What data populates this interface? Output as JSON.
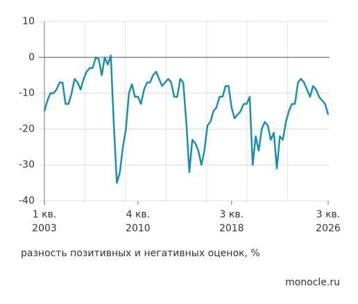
{
  "chart_data": {
    "type": "line",
    "categories": [
      "1 кв.\n2003",
      null,
      null,
      null,
      null,
      null,
      null,
      null,
      null,
      null,
      null,
      null,
      null,
      null,
      null,
      null,
      null,
      null,
      null,
      null,
      null,
      null,
      null,
      null,
      null,
      null,
      null,
      null,
      null,
      null,
      null,
      "4 кв.\n2010",
      null,
      null,
      null,
      null,
      null,
      null,
      null,
      null,
      null,
      null,
      null,
      null,
      null,
      null,
      null,
      null,
      null,
      null,
      null,
      null,
      null,
      null,
      null,
      null,
      null,
      null,
      null,
      null,
      null,
      null,
      "3 кв.\n2018",
      null,
      null,
      null,
      null,
      null,
      null,
      null,
      null,
      null,
      null,
      null,
      null,
      null,
      null,
      null,
      null,
      null,
      null,
      null,
      null,
      null,
      null,
      null,
      null,
      null,
      null,
      null,
      null,
      null,
      null,
      null,
      "3 кв.\n2026"
    ],
    "values": [
      -15,
      -12,
      -10,
      -10,
      -9,
      -7,
      -7,
      -13,
      -13,
      -10,
      -6,
      -7,
      -9,
      -6,
      -4,
      -3,
      -3,
      0,
      -0.5,
      -5,
      0,
      -2,
      0.5,
      -19,
      -35,
      -32,
      -25,
      -20,
      -10,
      -7.5,
      -11,
      -11,
      -13,
      -9,
      -7,
      -7,
      -5,
      -4,
      -6,
      -8,
      -7,
      -6,
      -7,
      -11,
      -11,
      -6,
      -7,
      -18,
      -32,
      -23,
      -24,
      -26,
      -30,
      -26,
      -19,
      -18,
      -15,
      -14,
      -11,
      -11,
      -8,
      -8,
      -14,
      -17,
      -16,
      -15,
      -13,
      -13,
      -11,
      -30,
      -22,
      -26,
      -20,
      -18,
      -19,
      -23,
      -21,
      -31,
      -22,
      -23,
      -18,
      -15,
      -13,
      -13,
      -7,
      -6,
      -7,
      -9,
      -11,
      -8,
      -9,
      -11,
      -12,
      -13,
      -16
    ],
    "color": "#1a8db3",
    "ylim": [
      -40,
      10
    ],
    "yticks": [
      -40,
      -30,
      -20,
      -10,
      0,
      10
    ],
    "grid": true,
    "caption": "разность позитивных и негативных оценок, %",
    "source": "monocle.ru"
  }
}
